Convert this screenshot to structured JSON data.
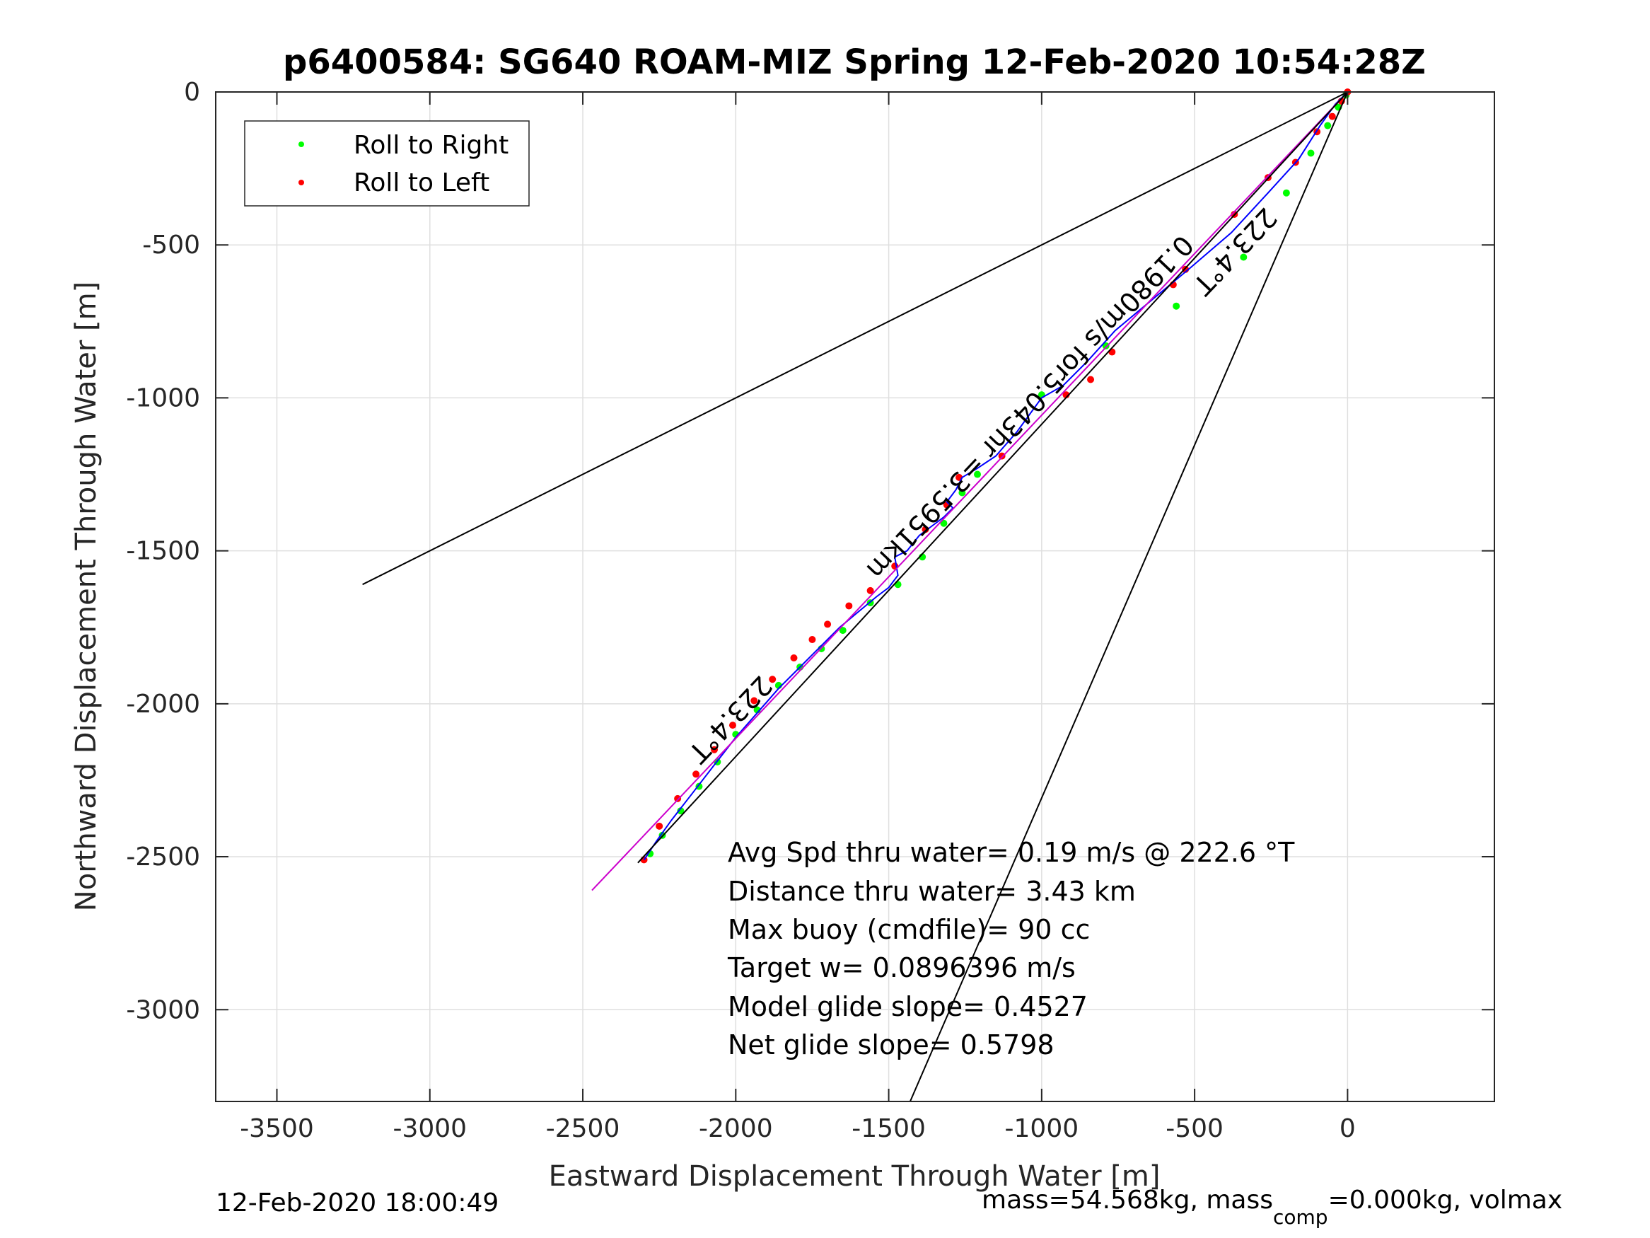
{
  "chart_data": {
    "type": "scatter",
    "title": "p6400584: SG640 ROAM-MIZ Spring 12-Feb-2020 10:54:28Z",
    "xlabel": "Eastward Displacement Through Water [m]",
    "ylabel": "Northward Displacement Through Water [m]",
    "xlim": [
      -3700,
      480
    ],
    "ylim": [
      -3300,
      0
    ],
    "xticks": [
      -3500,
      -3000,
      -2500,
      -2000,
      -1500,
      -1000,
      -500,
      0
    ],
    "yticks": [
      0,
      -500,
      -1000,
      -1500,
      -2000,
      -2500,
      -3000
    ],
    "grid": true,
    "legend_position": "top-left",
    "series": [
      {
        "name": "Roll to Right",
        "color": "#00ff00",
        "marker": "dot",
        "x": [
          -5,
          -30,
          -65,
          -120,
          -200,
          -340,
          -560,
          -790,
          -1000,
          -1210,
          -1260,
          -1320,
          -1390,
          -1470,
          -1560,
          -1650,
          -1720,
          -1790,
          -1860,
          -1930,
          -2000,
          -2060,
          -2120,
          -2180,
          -2240,
          -2280
        ],
        "y": [
          -10,
          -50,
          -110,
          -200,
          -330,
          -540,
          -700,
          -830,
          -990,
          -1250,
          -1310,
          -1410,
          -1520,
          -1610,
          -1670,
          -1760,
          -1820,
          -1880,
          -1940,
          -2020,
          -2100,
          -2190,
          -2270,
          -2350,
          -2430,
          -2490
        ]
      },
      {
        "name": "Roll to Left",
        "color": "#ff0000",
        "marker": "dot",
        "x": [
          0,
          -20,
          -50,
          -100,
          -170,
          -260,
          -370,
          -530,
          -570,
          -770,
          -840,
          -920,
          -1130,
          -1270,
          -1310,
          -1380,
          -1480,
          -1560,
          -1630,
          -1700,
          -1750,
          -1810,
          -1880,
          -1940,
          -2010,
          -2070,
          -2130,
          -2190,
          -2250,
          -2300
        ],
        "y": [
          0,
          -30,
          -80,
          -130,
          -230,
          -280,
          -400,
          -580,
          -630,
          -850,
          -940,
          -990,
          -1190,
          -1260,
          -1350,
          -1430,
          -1550,
          -1630,
          -1680,
          -1740,
          -1790,
          -1850,
          -1920,
          -1990,
          -2070,
          -2150,
          -2230,
          -2310,
          -2400,
          -2510
        ]
      },
      {
        "name": "",
        "color": "#0000ff",
        "marker": "line",
        "x": [
          0,
          -40,
          -90,
          -160,
          -260,
          -380,
          -520,
          -640,
          -760,
          -850,
          -930,
          -1000,
          -1080,
          -1150,
          -1210,
          -1260,
          -1280,
          -1310,
          -1290,
          -1320,
          -1360,
          -1400,
          -1440,
          -1480,
          -1470,
          -1500,
          -1540,
          -1600,
          -1660,
          -1720,
          -1790,
          -1860,
          -1930,
          -2000,
          -2070,
          -2140,
          -2210,
          -2260,
          -2300
        ],
        "y": [
          0,
          -40,
          -110,
          -220,
          -330,
          -460,
          -580,
          -680,
          -780,
          -880,
          -960,
          -1000,
          -1110,
          -1190,
          -1230,
          -1260,
          -1300,
          -1340,
          -1360,
          -1390,
          -1420,
          -1450,
          -1500,
          -1520,
          -1580,
          -1620,
          -1650,
          -1700,
          -1750,
          -1810,
          -1880,
          -1950,
          -2030,
          -2110,
          -2200,
          -2290,
          -2380,
          -2450,
          -2510
        ]
      },
      {
        "name": "",
        "color": "#cc00cc",
        "marker": "line",
        "x": [
          0,
          -2470
        ],
        "y": [
          0,
          -2610
        ]
      },
      {
        "name": "",
        "color": "#000000",
        "marker": "line",
        "x": [
          0,
          -2320
        ],
        "y": [
          0,
          -2520
        ]
      },
      {
        "name": "",
        "color": "#000000",
        "marker": "line",
        "x": [
          0,
          -3220
        ],
        "y": [
          0,
          -1610
        ]
      },
      {
        "name": "",
        "color": "#000000",
        "marker": "line",
        "x": [
          0,
          -1430
        ],
        "y": [
          0,
          -3300
        ]
      }
    ],
    "annotations": [
      {
        "text": "Avg Spd thru water=  0.19 m/s @ 222.6 °T"
      },
      {
        "text": "Distance thru water=  3.43 km"
      },
      {
        "text": "Max buoy (cmdfile)= 90 cc"
      },
      {
        "text": "Target w= 0.0896396 m/s"
      },
      {
        "text": "Model glide slope= 0.4527"
      },
      {
        "text": "Net glide slope= 0.5798"
      }
    ],
    "rotated_labels": [
      {
        "text": "223.4°T",
        "x": -390,
        "y": -500
      },
      {
        "text": "0.1980m/s for5.043hr =3.5951km",
        "x": -1060,
        "y": -1010
      },
      {
        "text": "223.4°T",
        "x": -2040,
        "y": -2030
      }
    ]
  },
  "footer": {
    "timestamp": "12-Feb-2020 18:00:49",
    "mass_prefix": "mass=54.568kg, mass",
    "mass_sub": "comp",
    "mass_suffix": "=0.000kg, volmax"
  }
}
